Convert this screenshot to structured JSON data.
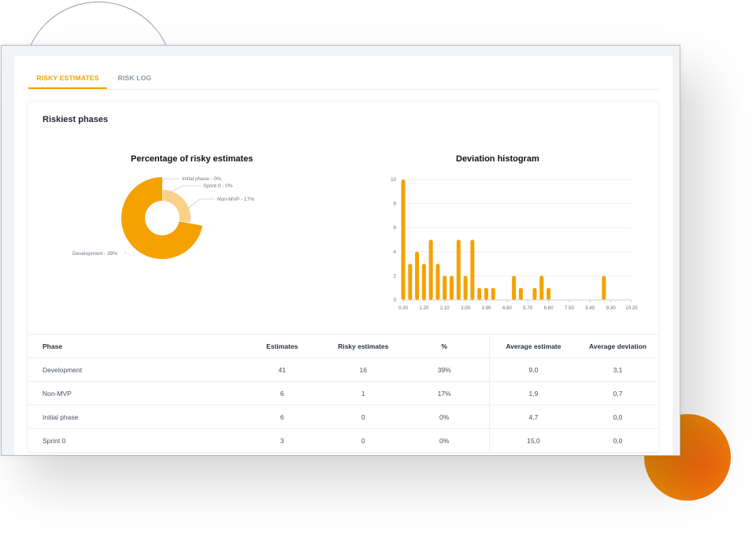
{
  "tabs": [
    {
      "label": "RISKY ESTIMATES",
      "active": true
    },
    {
      "label": "RISK LOG",
      "active": false
    }
  ],
  "card": {
    "title": "Riskiest phases"
  },
  "accent_color": "#f5a100",
  "chart_data": [
    {
      "type": "pie",
      "title": "Percentage of risky estimates",
      "style": "donut",
      "slices": [
        {
          "label": "Initial phase - 0%",
          "value": 0,
          "color": "#f5a100"
        },
        {
          "label": "Sprint 0 - 0%",
          "value": 0,
          "color": "#f5a100"
        },
        {
          "label": "Non-MVP - 17%",
          "value": 17,
          "color": "#fdd08a"
        },
        {
          "label": "Development - 39%",
          "value": 39,
          "color": "#f5a100"
        }
      ]
    },
    {
      "type": "bar",
      "title": "Deviation histogram",
      "x": [
        0.3,
        0.6,
        0.9,
        1.2,
        1.5,
        1.8,
        2.1,
        2.4,
        2.7,
        3.0,
        3.3,
        3.6,
        3.9,
        4.2,
        5.1,
        5.4,
        6.0,
        6.3,
        6.6,
        9.0
      ],
      "values": [
        10,
        3,
        4,
        3,
        5,
        3,
        2,
        2,
        5,
        2,
        5,
        1,
        1,
        1,
        2,
        1,
        1,
        2,
        1,
        2
      ],
      "xticks": [
        "0.30",
        "1.20",
        "2.10",
        "3.00",
        "3.90",
        "4.80",
        "5.70",
        "6.60",
        "7.50",
        "8.40",
        "9.30",
        "10.20"
      ],
      "yticks": [
        "0",
        "2",
        "4",
        "6",
        "8",
        "10"
      ],
      "xlim": [
        0.3,
        10.2
      ],
      "ylim": [
        0,
        10
      ],
      "grid": true,
      "color": "#f5a100"
    }
  ],
  "table": {
    "headers": [
      "Phase",
      "Estimates",
      "Risky estimates",
      "%",
      "Average estimate",
      "Average deviation"
    ],
    "rows": [
      [
        "Development",
        "41",
        "16",
        "39%",
        "9,0",
        "3,1"
      ],
      [
        "Non-MVP",
        "6",
        "1",
        "17%",
        "1,9",
        "0,7"
      ],
      [
        "Initial phase",
        "6",
        "0",
        "0%",
        "4,7",
        "0,0"
      ],
      [
        "Sprint 0",
        "3",
        "0",
        "0%",
        "15,0",
        "0,0"
      ]
    ]
  }
}
